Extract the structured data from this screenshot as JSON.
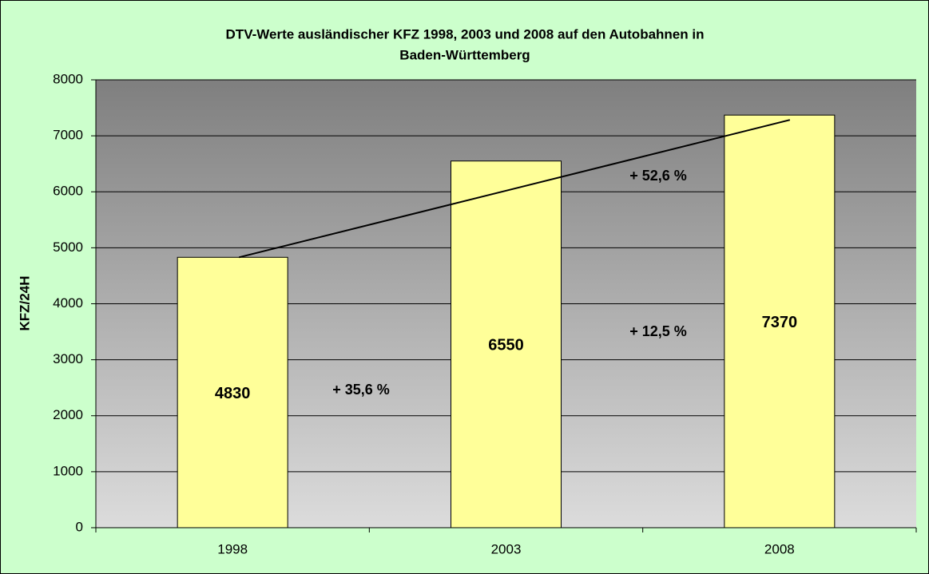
{
  "chart_data": {
    "type": "bar",
    "title": [
      "DTV-Werte ausländischer KFZ 1998, 2003 und 2008 auf den Autobahnen in",
      "Baden-Württemberg"
    ],
    "y_label": "KFZ/24H",
    "categories": [
      "1998",
      "2003",
      "2008"
    ],
    "values": [
      4830,
      6550,
      7370
    ],
    "color": "#ffff99",
    "ylim": [
      0,
      8000
    ],
    "yticks": [
      0,
      1000,
      2000,
      3000,
      4000,
      5000,
      6000,
      7000,
      8000
    ],
    "grid": true,
    "annotations": [
      "+ 35,6 %",
      "+ 12,5 %",
      "+ 52,6 %"
    ]
  }
}
